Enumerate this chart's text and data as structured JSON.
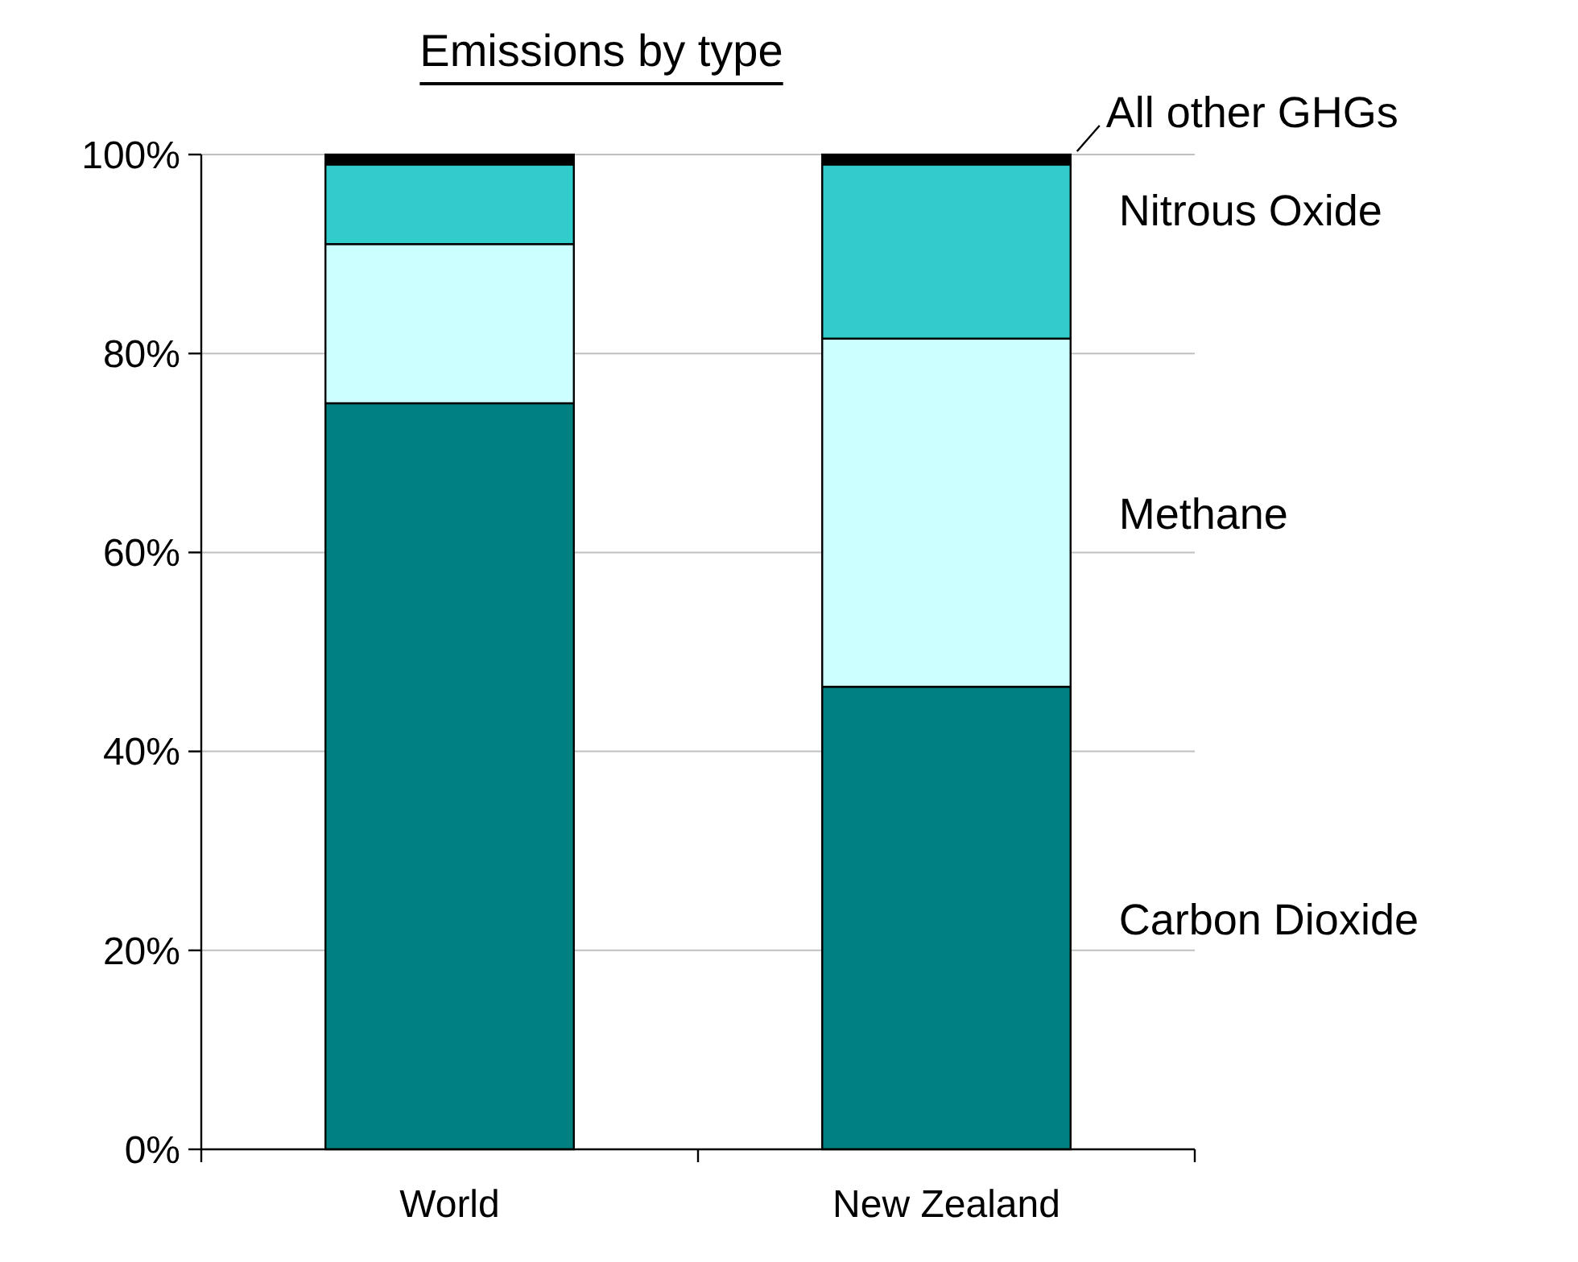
{
  "chart_data": {
    "type": "bar",
    "title": "Emissions by type",
    "categories": [
      "World",
      "New Zealand"
    ],
    "stacked": true,
    "series": [
      {
        "name": "Carbon Dioxide",
        "color": "#008080",
        "values": [
          75,
          46.5
        ]
      },
      {
        "name": "Methane",
        "color": "#ccffff",
        "values": [
          16,
          35
        ]
      },
      {
        "name": "Nitrous Oxide",
        "color": "#33cccc",
        "values": [
          8,
          17.5
        ]
      },
      {
        "name": "All other GHGs",
        "color": "#000000",
        "values": [
          1,
          1
        ]
      }
    ],
    "ylim": [
      0,
      100
    ],
    "yticks": [
      {
        "value": 0,
        "label": "0%"
      },
      {
        "value": 20,
        "label": "20%"
      },
      {
        "value": 40,
        "label": "40%"
      },
      {
        "value": 60,
        "label": "60%"
      },
      {
        "value": 80,
        "label": "80%"
      },
      {
        "value": 100,
        "label": "100%"
      }
    ],
    "grid": "y",
    "legend": "right"
  }
}
